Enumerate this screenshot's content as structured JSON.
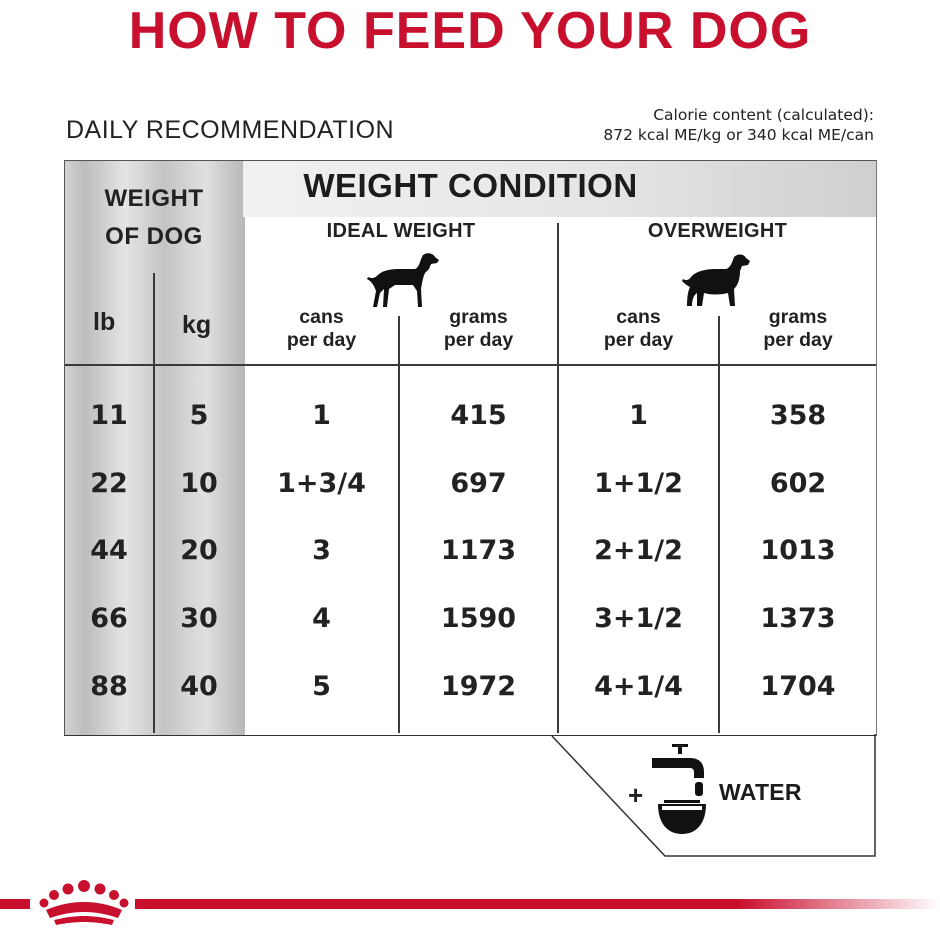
{
  "title": "HOW TO FEED YOUR DOG",
  "subtitle": "DAILY RECOMMENDATION",
  "calories": {
    "line1": "Calorie content (calculated):",
    "line2": "872 kcal ME/kg or 340 kcal ME/can"
  },
  "colors": {
    "brand_red": "#c8102e",
    "text": "#222222"
  },
  "table": {
    "weight_of_dog_line1": "WEIGHT",
    "weight_of_dog_line2": "OF DOG",
    "condition_title": "WEIGHT CONDITION",
    "unit_lb": "lb",
    "unit_kg": "kg",
    "groups": [
      {
        "label": "IDEAL WEIGHT",
        "icon": "dog-standing-icon"
      },
      {
        "label": "OVERWEIGHT",
        "icon": "dog-overweight-icon"
      }
    ],
    "sub_headers": [
      {
        "line1": "cans",
        "line2": "per day"
      },
      {
        "line1": "grams",
        "line2": "per day"
      },
      {
        "line1": "cans",
        "line2": "per day"
      },
      {
        "line1": "grams",
        "line2": "per day"
      }
    ],
    "rows": [
      [
        "11",
        "5",
        "1",
        "415",
        "1",
        "358"
      ],
      [
        "22",
        "10",
        "1+3/4",
        "697",
        "1+1/2",
        "602"
      ],
      [
        "44",
        "20",
        "3",
        "1173",
        "2+1/2",
        "1013"
      ],
      [
        "66",
        "30",
        "4",
        "1590",
        "3+1/2",
        "1373"
      ],
      [
        "88",
        "40",
        "5",
        "1972",
        "4+1/4",
        "1704"
      ]
    ]
  },
  "water": {
    "plus": "+",
    "label": "WATER",
    "icon": "water-tap-bowl-icon"
  },
  "footer": {
    "logo": "royal-crown-logo"
  }
}
